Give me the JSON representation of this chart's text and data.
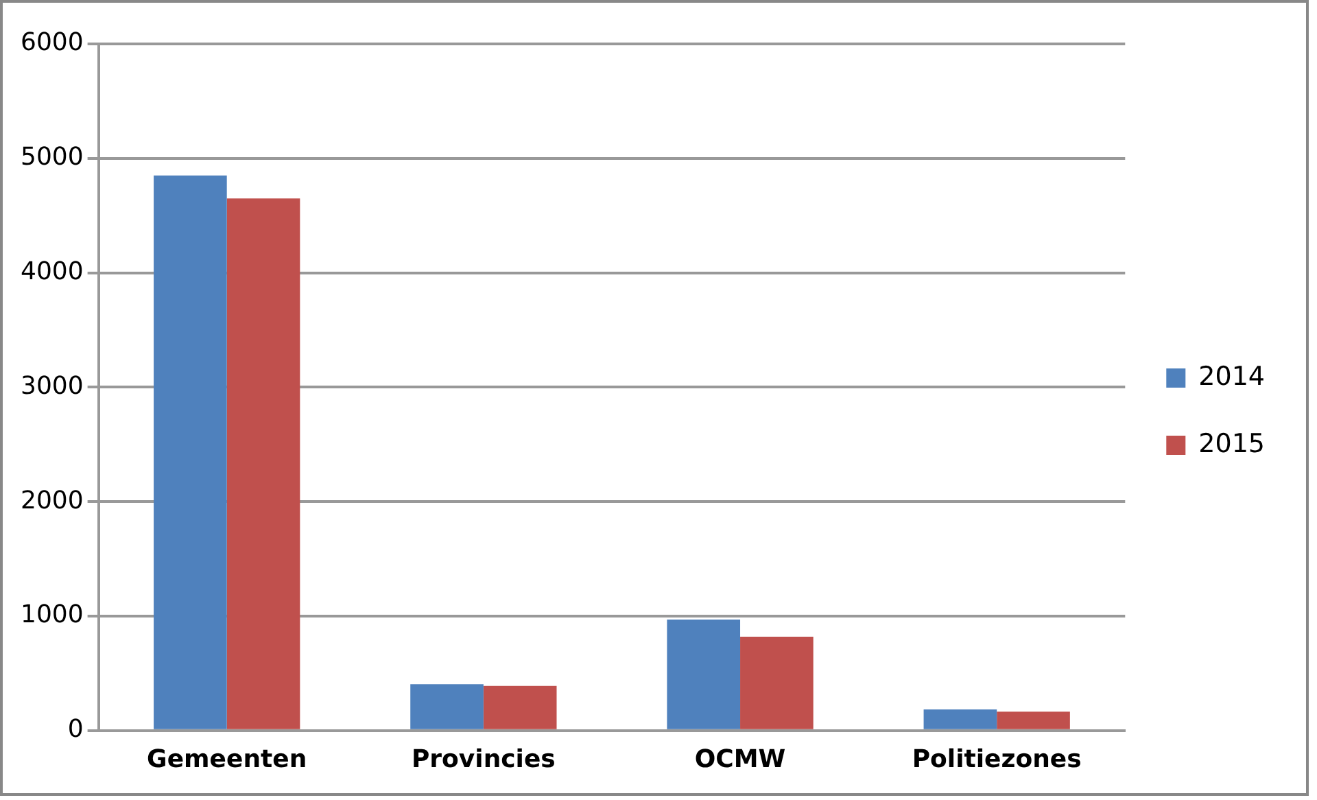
{
  "chart_data": {
    "type": "bar",
    "categories": [
      "Gemeenten",
      "Provincies",
      "OCMW",
      "Politiezones"
    ],
    "series": [
      {
        "name": "2014",
        "color": "#4f81bd",
        "values": [
          4850,
          405,
          970,
          185
        ]
      },
      {
        "name": "2015",
        "color": "#c0504d",
        "values": [
          4650,
          390,
          820,
          165
        ]
      }
    ],
    "ylim": [
      0,
      6000
    ],
    "yticks": [
      0,
      1000,
      2000,
      3000,
      4000,
      5000,
      6000
    ],
    "grid": "y",
    "legend": "right"
  }
}
